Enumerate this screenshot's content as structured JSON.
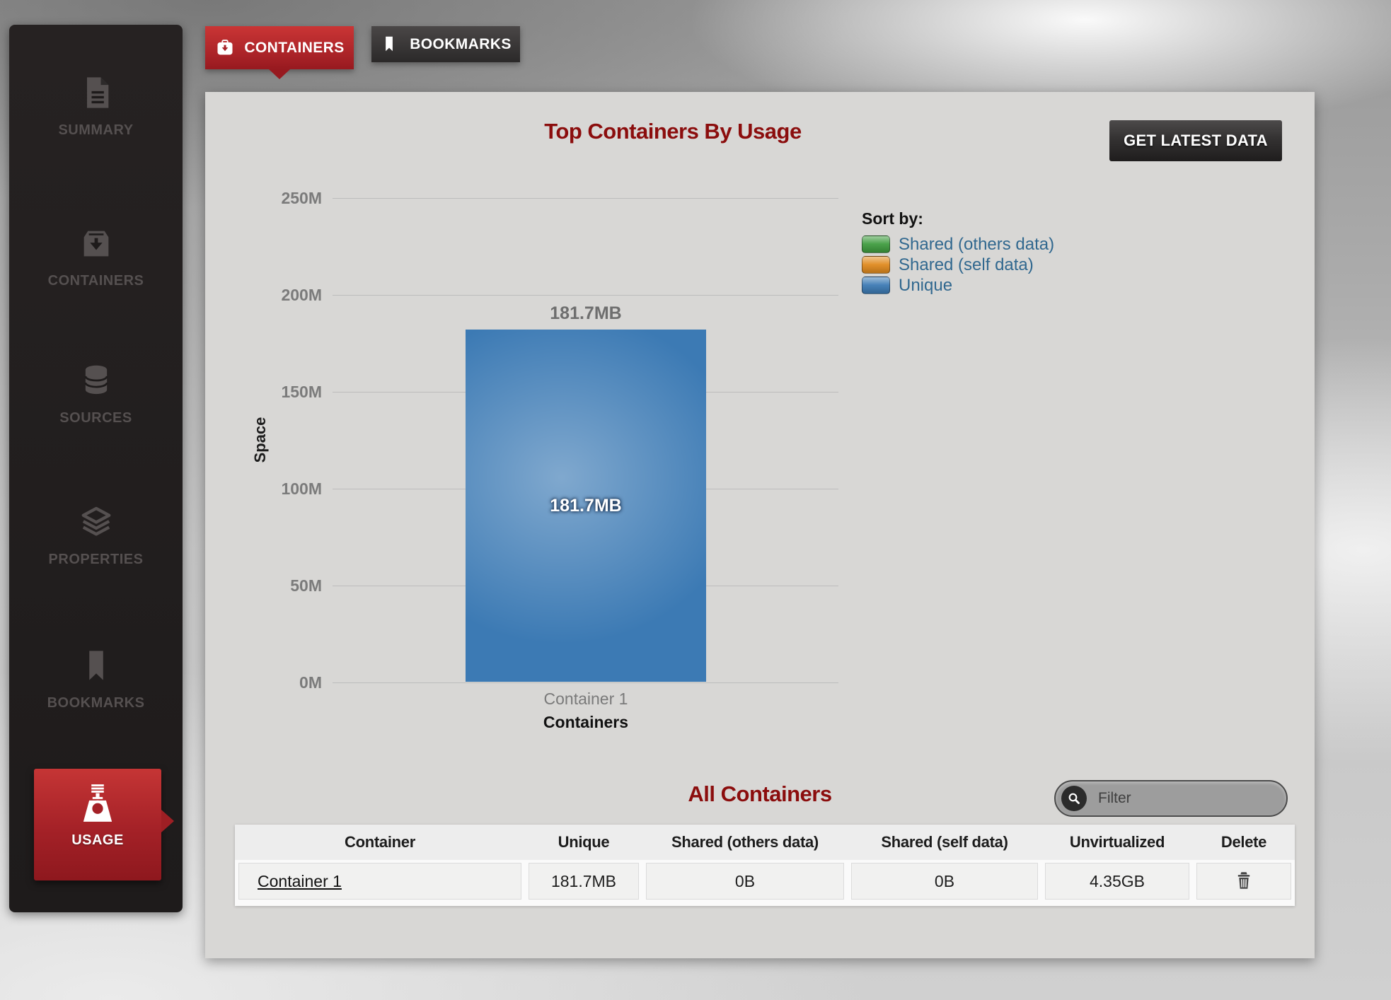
{
  "tabs": [
    {
      "label": "CONTAINERS",
      "active": true
    },
    {
      "label": "BOOKMARKS",
      "active": false
    }
  ],
  "sidebar": {
    "items": [
      {
        "label": "SUMMARY",
        "icon": "document-icon",
        "active": false
      },
      {
        "label": "CONTAINERS",
        "icon": "archive-box-icon",
        "active": false
      },
      {
        "label": "SOURCES",
        "icon": "database-icon",
        "active": false
      },
      {
        "label": "PROPERTIES",
        "icon": "layers-icon",
        "active": false
      },
      {
        "label": "BOOKMARKS",
        "icon": "bookmark-icon",
        "active": false
      },
      {
        "label": "USAGE",
        "icon": "scale-icon",
        "active": true
      }
    ]
  },
  "panel": {
    "title": "Top Containers By Usage",
    "title_color": "#8b0d0d",
    "get_latest_button": "GET LATEST DATA",
    "legend": {
      "title": "Sort by:",
      "text_color": "#31688f",
      "items": [
        {
          "label": "Shared (others data)",
          "color": "#3f9c3f"
        },
        {
          "label": "Shared (self data)",
          "color": "#e08a1e"
        },
        {
          "label": "Unique",
          "color": "#3c7ab4"
        }
      ]
    },
    "all_containers": {
      "title": "All Containers",
      "filter_placeholder": "Filter",
      "table": {
        "headers": [
          "Container",
          "Unique",
          "Shared (others data)",
          "Shared (self data)",
          "Unvirtualized",
          "Delete"
        ],
        "rows": [
          {
            "container": "Container 1",
            "unique": "181.7MB",
            "shared_others": "0B",
            "shared_self": "0B",
            "unvirtualized": "4.35GB"
          }
        ]
      }
    }
  },
  "chart_data": {
    "type": "bar",
    "title": "Top Containers By Usage",
    "categories": [
      "Container 1"
    ],
    "series": [
      {
        "name": "Unique",
        "values_mb": [
          181.7
        ],
        "label": "181.7MB",
        "color": "#3c7ab4"
      },
      {
        "name": "Shared (others data)",
        "values_mb": [
          0
        ],
        "color": "#3f9c3f"
      },
      {
        "name": "Shared (self data)",
        "values_mb": [
          0
        ],
        "color": "#e08a1e"
      }
    ],
    "xlabel": "Containers",
    "ylabel": "Space",
    "y_ticks": [
      "0M",
      "50M",
      "100M",
      "150M",
      "200M",
      "250M"
    ],
    "ylim_mb": [
      0,
      250
    ],
    "grid": true,
    "legend_position": "right",
    "bar_value_label": "181.7MB"
  }
}
